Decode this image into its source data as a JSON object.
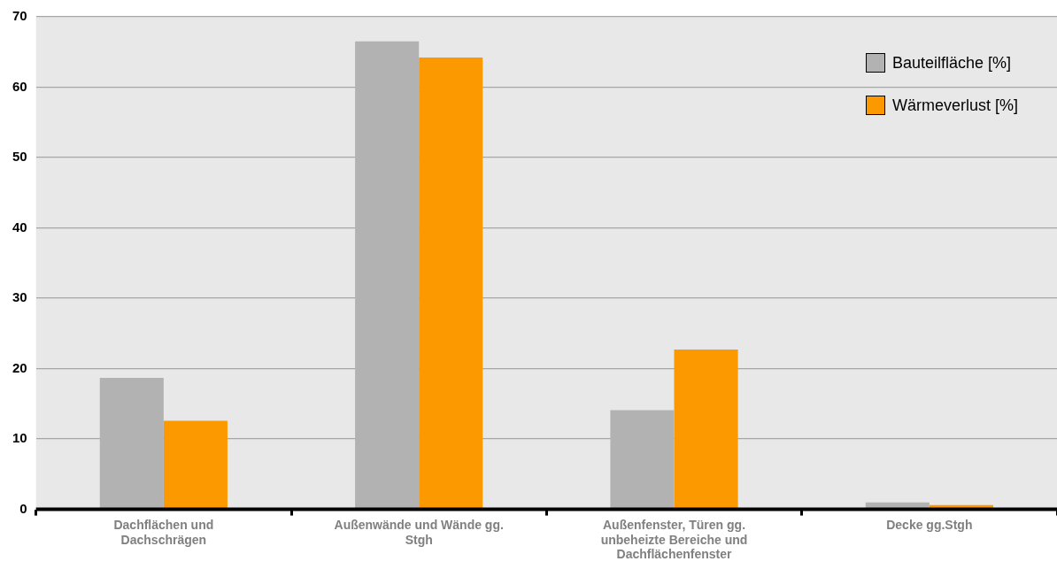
{
  "chart_data": {
    "type": "bar",
    "categories": [
      "Dachflächen und Dachschrägen",
      "Außenwände und Wände gg. Stgh",
      "Außenfenster, Türen gg. unbeheizte Bereiche und Dachflächenfenster",
      "Decke gg.Stgh"
    ],
    "series": [
      {
        "name": "Bauteilfläche [%]",
        "color": "#b2b2b2",
        "values": [
          18.7,
          66.5,
          14.1,
          1.0
        ]
      },
      {
        "name": "Wärmeverlust [%]",
        "color": "#fc9800",
        "values": [
          12.6,
          64.2,
          22.7,
          0.6
        ]
      }
    ],
    "ylim": [
      0,
      70
    ],
    "yticks": [
      0,
      10,
      20,
      30,
      40,
      50,
      60,
      70
    ],
    "grid": "y",
    "legend": "top right"
  }
}
